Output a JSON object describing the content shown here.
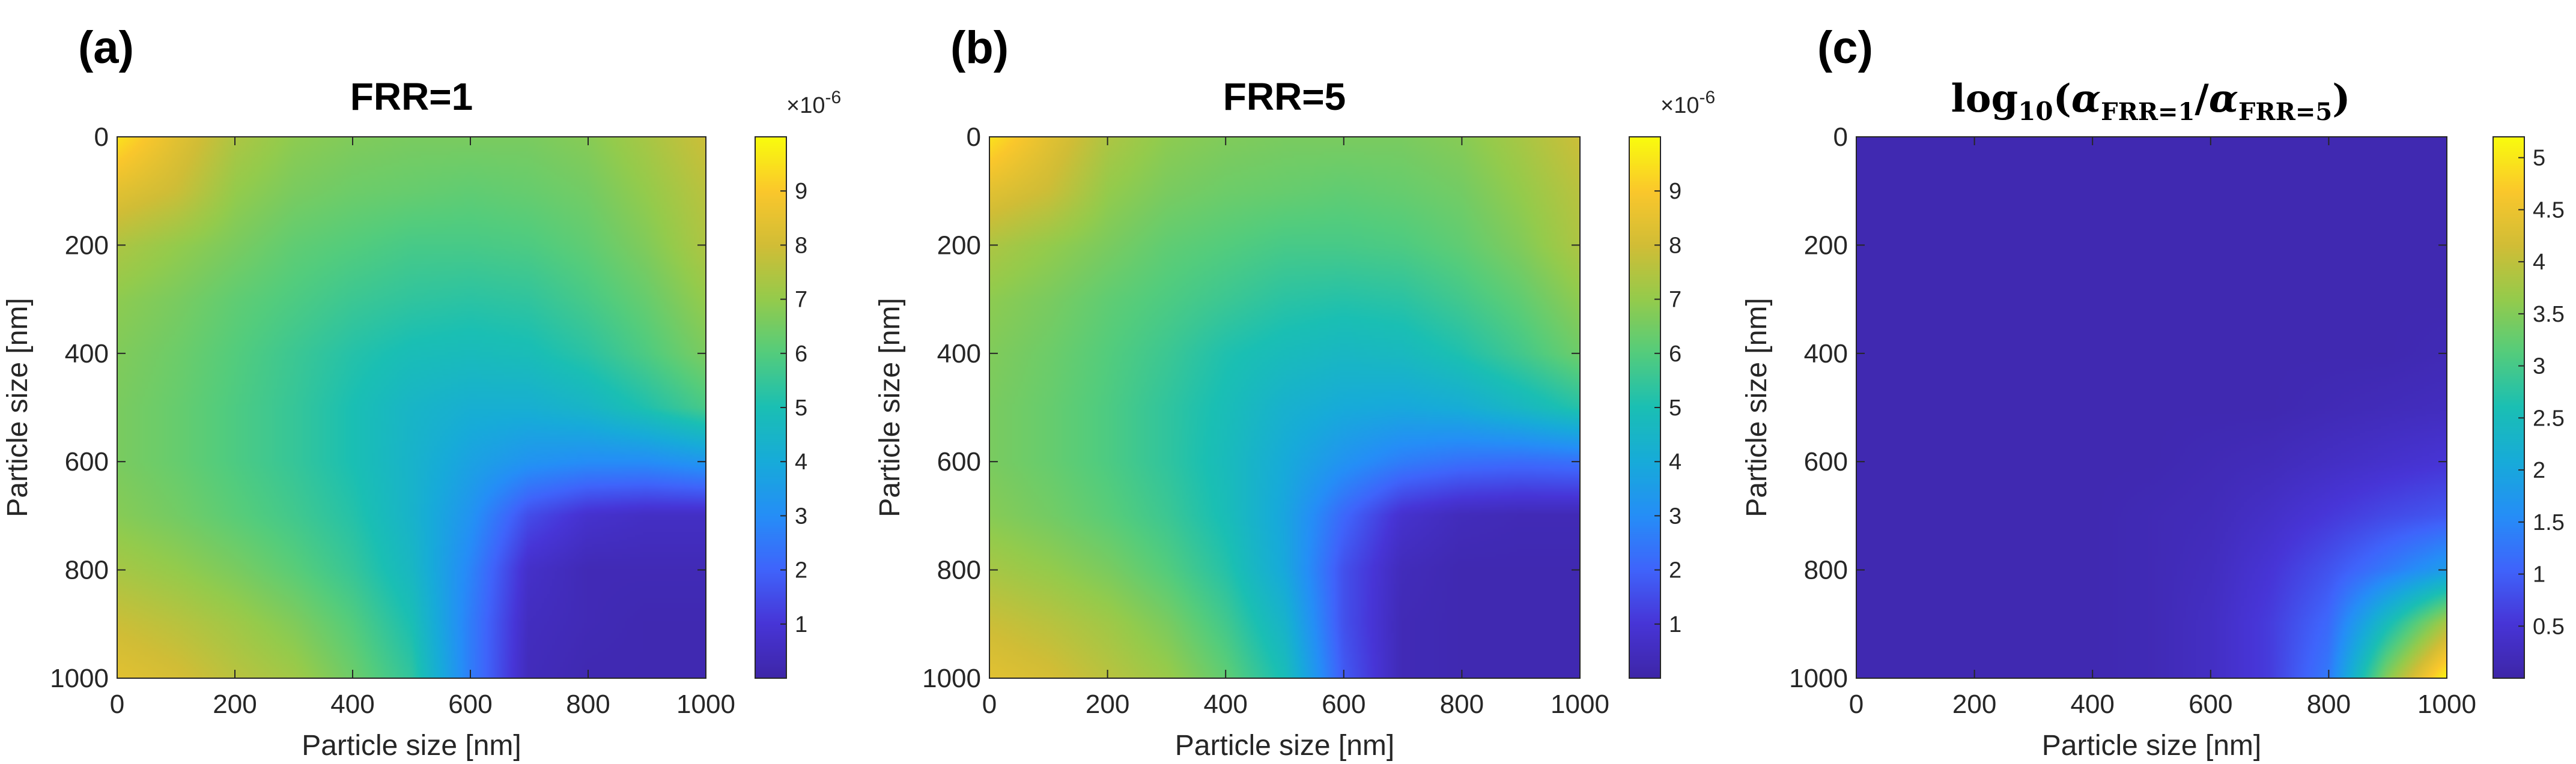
{
  "chart_data": [
    {
      "type": "heatmap",
      "panel_label": "(a)",
      "title": "FRR=1",
      "xlabel": "Particle size [nm]",
      "ylabel": "Particle size [nm]",
      "xlim": [
        0,
        1000
      ],
      "ylim": [
        0,
        1000
      ],
      "y_reversed": true,
      "xticks": [
        "0",
        "200",
        "400",
        "600",
        "800",
        "1000"
      ],
      "yticks": [
        "0",
        "200",
        "400",
        "600",
        "800",
        "1000"
      ],
      "colormap": "parula",
      "colorbar": {
        "min": 0,
        "max": 10,
        "multiplier": "×10^-6",
        "multiplier_base": "×10",
        "multiplier_exp": "-6",
        "ticks": [
          "1",
          "2",
          "3",
          "4",
          "5",
          "6",
          "7",
          "8",
          "9"
        ]
      },
      "field": {
        "x": [
          0,
          100,
          200,
          300,
          400,
          500,
          600,
          700,
          800,
          900,
          1000
        ],
        "y": [
          0,
          100,
          200,
          300,
          400,
          500,
          600,
          700,
          800,
          900,
          1000
        ],
        "z": [
          [
            9.5,
            8.4,
            7.4,
            6.9,
            6.7,
            6.6,
            6.6,
            6.6,
            6.8,
            7.3,
            7.9
          ],
          [
            8.4,
            7.9,
            7.0,
            6.6,
            6.4,
            6.3,
            6.2,
            6.3,
            6.5,
            7.0,
            7.6
          ],
          [
            7.4,
            7.0,
            6.6,
            6.2,
            6.0,
            5.8,
            5.8,
            5.9,
            6.2,
            6.7,
            7.4
          ],
          [
            6.9,
            6.6,
            6.2,
            5.9,
            5.6,
            5.4,
            5.3,
            5.4,
            5.8,
            6.3,
            7.0
          ],
          [
            6.7,
            6.4,
            6.0,
            5.6,
            5.2,
            4.9,
            4.8,
            4.9,
            5.3,
            5.9,
            6.6
          ],
          [
            6.6,
            6.3,
            5.9,
            5.5,
            5.0,
            4.5,
            4.2,
            4.2,
            4.5,
            5.1,
            5.8
          ],
          [
            6.6,
            6.3,
            5.9,
            5.5,
            5.0,
            4.4,
            3.7,
            3.2,
            3.0,
            3.0,
            3.3
          ],
          [
            6.8,
            6.5,
            6.1,
            5.7,
            5.2,
            4.4,
            3.2,
            1.5,
            0.8,
            0.6,
            0.6
          ],
          [
            7.3,
            7.0,
            6.6,
            6.1,
            5.5,
            4.6,
            2.8,
            0.7,
            0.3,
            0.3,
            0.3
          ],
          [
            7.9,
            7.6,
            7.2,
            6.7,
            6.0,
            5.0,
            2.6,
            0.5,
            0.3,
            0.2,
            0.2
          ],
          [
            8.4,
            8.1,
            7.6,
            7.2,
            6.4,
            5.4,
            2.6,
            0.4,
            0.2,
            0.2,
            0.2
          ]
        ]
      }
    },
    {
      "type": "heatmap",
      "panel_label": "(b)",
      "title": "FRR=5",
      "xlabel": "Particle size [nm]",
      "ylabel": "Particle size [nm]",
      "xlim": [
        0,
        1000
      ],
      "ylim": [
        0,
        1000
      ],
      "y_reversed": true,
      "xticks": [
        "0",
        "200",
        "400",
        "600",
        "800",
        "1000"
      ],
      "yticks": [
        "0",
        "200",
        "400",
        "600",
        "800",
        "1000"
      ],
      "colormap": "parula",
      "colorbar": {
        "min": 0,
        "max": 10,
        "multiplier": "×10^-6",
        "multiplier_base": "×10",
        "multiplier_exp": "-6",
        "ticks": [
          "1",
          "2",
          "3",
          "4",
          "5",
          "6",
          "7",
          "8",
          "9"
        ]
      },
      "field": {
        "x": [
          0,
          100,
          200,
          300,
          400,
          500,
          600,
          700,
          800,
          900,
          1000
        ],
        "y": [
          0,
          100,
          200,
          300,
          400,
          500,
          600,
          700,
          800,
          900,
          1000
        ],
        "z": [
          [
            9.5,
            8.4,
            7.4,
            6.9,
            6.7,
            6.6,
            6.6,
            6.6,
            6.8,
            7.3,
            7.9
          ],
          [
            8.4,
            7.9,
            7.0,
            6.6,
            6.4,
            6.3,
            6.2,
            6.3,
            6.5,
            7.0,
            7.6
          ],
          [
            7.4,
            7.0,
            6.6,
            6.2,
            6.0,
            5.8,
            5.8,
            5.9,
            6.2,
            6.7,
            7.4
          ],
          [
            6.9,
            6.6,
            6.2,
            5.9,
            5.6,
            5.3,
            5.2,
            5.3,
            5.7,
            6.2,
            6.9
          ],
          [
            6.7,
            6.4,
            6.0,
            5.6,
            5.1,
            4.8,
            4.6,
            4.7,
            5.1,
            5.7,
            6.4
          ],
          [
            6.6,
            6.3,
            5.9,
            5.4,
            4.9,
            4.3,
            4.0,
            3.9,
            4.1,
            4.6,
            5.2
          ],
          [
            6.6,
            6.3,
            5.9,
            5.4,
            4.8,
            4.0,
            3.2,
            2.6,
            2.3,
            2.2,
            2.3
          ],
          [
            6.8,
            6.5,
            6.1,
            5.6,
            4.9,
            3.8,
            2.1,
            0.8,
            0.4,
            0.3,
            0.3
          ],
          [
            7.3,
            7.0,
            6.6,
            6.0,
            5.2,
            3.9,
            1.6,
            0.4,
            0.2,
            0.2,
            0.2
          ],
          [
            7.9,
            7.6,
            7.2,
            6.6,
            5.7,
            4.4,
            1.6,
            0.3,
            0.2,
            0.2,
            0.2
          ],
          [
            8.4,
            8.1,
            7.6,
            7.1,
            6.2,
            4.9,
            1.8,
            0.3,
            0.2,
            0.2,
            0.2
          ]
        ]
      }
    },
    {
      "type": "heatmap",
      "panel_label": "(c)",
      "title_parts": {
        "func": "log",
        "base": "10",
        "open": "(",
        "alpha": "α",
        "sub1": "FRR=1",
        "slash": "/",
        "sub2": "FRR=5",
        "close": ")"
      },
      "xlabel": "Particle size [nm]",
      "ylabel": "Particle size [nm]",
      "xlim": [
        0,
        1000
      ],
      "ylim": [
        0,
        1000
      ],
      "y_reversed": true,
      "xticks": [
        "0",
        "200",
        "400",
        "600",
        "800",
        "1000"
      ],
      "yticks": [
        "0",
        "200",
        "400",
        "600",
        "800",
        "1000"
      ],
      "colormap": "parula",
      "colorbar": {
        "min": 0,
        "max": 5.2,
        "ticks": [
          "0.5",
          "1",
          "1.5",
          "2",
          "2.5",
          "3",
          "3.5",
          "4",
          "4.5",
          "5"
        ]
      },
      "field": {
        "x": [
          0,
          100,
          200,
          300,
          400,
          500,
          600,
          700,
          800,
          900,
          1000
        ],
        "y": [
          0,
          100,
          200,
          300,
          400,
          500,
          600,
          700,
          800,
          900,
          1000
        ],
        "z": [
          [
            0.1,
            0.1,
            0.1,
            0.1,
            0.1,
            0.1,
            0.1,
            0.1,
            0.1,
            0.1,
            0.1
          ],
          [
            0.1,
            0.1,
            0.1,
            0.1,
            0.1,
            0.1,
            0.1,
            0.1,
            0.1,
            0.1,
            0.1
          ],
          [
            0.1,
            0.1,
            0.1,
            0.1,
            0.1,
            0.1,
            0.1,
            0.1,
            0.1,
            0.1,
            0.1
          ],
          [
            0.1,
            0.1,
            0.1,
            0.1,
            0.1,
            0.1,
            0.1,
            0.1,
            0.1,
            0.1,
            0.1
          ],
          [
            0.1,
            0.1,
            0.1,
            0.1,
            0.1,
            0.1,
            0.1,
            0.1,
            0.1,
            0.1,
            0.15
          ],
          [
            0.1,
            0.1,
            0.1,
            0.1,
            0.1,
            0.1,
            0.1,
            0.1,
            0.15,
            0.2,
            0.25
          ],
          [
            0.1,
            0.1,
            0.1,
            0.1,
            0.1,
            0.1,
            0.15,
            0.2,
            0.3,
            0.4,
            0.5
          ],
          [
            0.1,
            0.1,
            0.1,
            0.1,
            0.1,
            0.15,
            0.2,
            0.35,
            0.55,
            0.75,
            0.9
          ],
          [
            0.1,
            0.1,
            0.1,
            0.1,
            0.1,
            0.15,
            0.25,
            0.5,
            0.85,
            1.3,
            1.8
          ],
          [
            0.1,
            0.1,
            0.1,
            0.1,
            0.1,
            0.15,
            0.3,
            0.6,
            1.1,
            2.5,
            3.8
          ],
          [
            0.1,
            0.1,
            0.1,
            0.1,
            0.1,
            0.15,
            0.3,
            0.6,
            1.3,
            3.5,
            5.1
          ]
        ]
      }
    }
  ]
}
